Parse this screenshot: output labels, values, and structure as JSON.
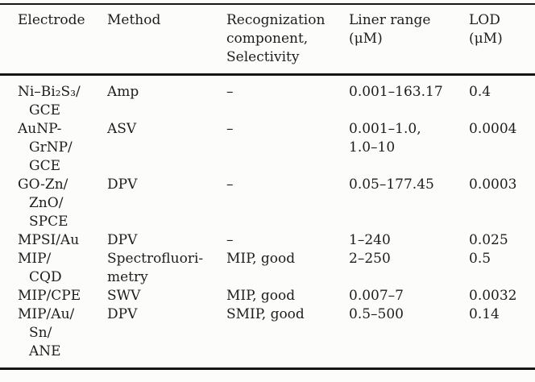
{
  "table": {
    "colors": {
      "text": "#1d1d1b",
      "rule": "#161616",
      "background": "#fcfcfb"
    },
    "columns": [
      {
        "id": "electrode",
        "header_lines": [
          "Electrode"
        ]
      },
      {
        "id": "method",
        "header_lines": [
          "Method"
        ]
      },
      {
        "id": "recognition",
        "header_lines": [
          "Recognization",
          "component,",
          "Selectivity"
        ]
      },
      {
        "id": "liner_range",
        "header_lines": [
          "Liner range",
          "(μM)"
        ]
      },
      {
        "id": "lod",
        "header_lines": [
          "LOD",
          "(μM)"
        ]
      }
    ],
    "rows": [
      {
        "electrode": [
          "Ni–Bi₂S₃/",
          "GCE"
        ],
        "method": [
          "Amp"
        ],
        "recognition": [
          "–"
        ],
        "liner_range": [
          "0.001–163.17"
        ],
        "lod": [
          "0.4"
        ]
      },
      {
        "electrode": [
          "AuNP-",
          "GrNP/",
          "GCE"
        ],
        "method": [
          "ASV"
        ],
        "recognition": [
          "–"
        ],
        "liner_range": [
          "0.001–1.0,",
          "1.0–10"
        ],
        "lod": [
          "0.0004"
        ]
      },
      {
        "electrode": [
          "GO-Zn/",
          "ZnO/",
          "SPCE"
        ],
        "method": [
          "DPV"
        ],
        "recognition": [
          "–"
        ],
        "liner_range": [
          "0.05–177.45"
        ],
        "lod": [
          "0.0003"
        ]
      },
      {
        "electrode": [
          "MPSI/Au"
        ],
        "method": [
          "DPV"
        ],
        "recognition": [
          "–"
        ],
        "liner_range": [
          "1–240"
        ],
        "lod": [
          "0.025"
        ]
      },
      {
        "electrode": [
          "MIP/",
          "CQD"
        ],
        "method": [
          "Spectrofluori-",
          "metry"
        ],
        "recognition": [
          "MIP, good"
        ],
        "liner_range": [
          "2–250"
        ],
        "lod": [
          "0.5"
        ]
      },
      {
        "electrode": [
          "MIP/CPE"
        ],
        "method": [
          "SWV"
        ],
        "recognition": [
          "MIP, good"
        ],
        "liner_range": [
          "0.007–7"
        ],
        "lod": [
          "0.0032"
        ]
      },
      {
        "electrode": [
          "MIP/Au/",
          "Sn/",
          "ANE"
        ],
        "method": [
          "DPV"
        ],
        "recognition": [
          "SMIP, good"
        ],
        "liner_range": [
          "0.5–500"
        ],
        "lod": [
          "0.14"
        ]
      }
    ]
  }
}
